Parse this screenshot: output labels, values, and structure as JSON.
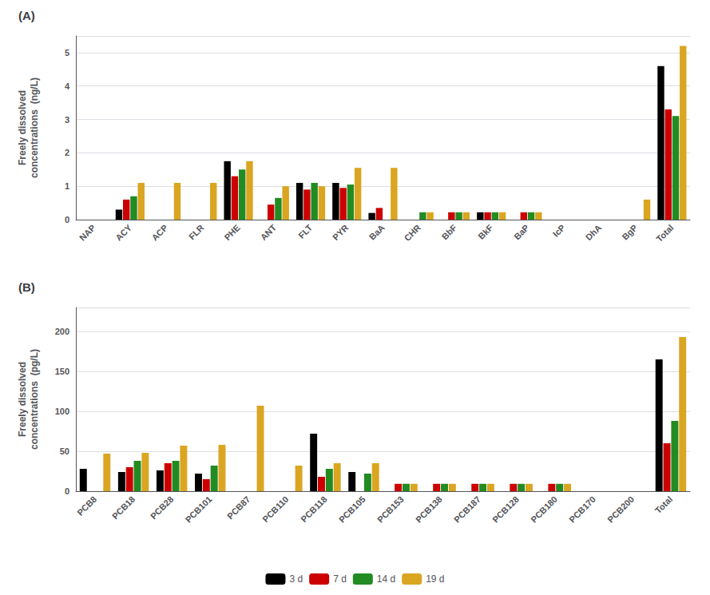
{
  "chart_data": [
    {
      "type": "bar",
      "title": "(A)",
      "categories": [
        "NAP",
        "ACY",
        "ACP",
        "FLR",
        "PHE",
        "ANT",
        "FLT",
        "PYR",
        "BaA",
        "CHR",
        "BbF",
        "BkF",
        "BaP",
        "IcP",
        "DhA",
        "BgP",
        "Total"
      ],
      "series": [
        {
          "name": "3 d",
          "color": "#000000",
          "values": [
            0.0,
            0.3,
            0.0,
            0.0,
            1.75,
            0.0,
            1.1,
            1.1,
            0.2,
            0.0,
            0.0,
            0.22,
            0.0,
            0.0,
            0.0,
            0.0,
            4.6
          ]
        },
        {
          "name": "7 d",
          "color": "#cc0000",
          "values": [
            0.0,
            0.6,
            0.0,
            0.0,
            1.3,
            0.45,
            0.9,
            0.95,
            0.35,
            0.0,
            0.22,
            0.22,
            0.22,
            0.0,
            0.0,
            0.0,
            3.3
          ]
        },
        {
          "name": "14 d",
          "color": "#228B22",
          "values": [
            0.0,
            0.7,
            0.0,
            0.0,
            1.5,
            0.65,
            1.1,
            1.05,
            0.0,
            0.22,
            0.22,
            0.22,
            0.22,
            0.0,
            0.0,
            0.0,
            3.1
          ]
        },
        {
          "name": "19 d",
          "color": "#DAA520",
          "values": [
            0.0,
            1.1,
            1.1,
            1.1,
            1.75,
            1.0,
            1.0,
            1.55,
            1.55,
            0.22,
            0.22,
            0.22,
            0.22,
            0.0,
            0.0,
            0.6,
            5.2
          ]
        }
      ],
      "ylabel": "Freely dissolved\nconcentrations  (ng/L)",
      "ylim": [
        0,
        5.5
      ],
      "yticks": [
        0,
        1,
        2,
        3,
        4,
        5
      ],
      "grid": true,
      "legend": "bottom"
    },
    {
      "type": "bar",
      "title": "(B)",
      "categories": [
        "PCB8",
        "PCB18",
        "PCB28",
        "PCB101",
        "PCB87",
        "PCB110",
        "PCB118",
        "PCB105",
        "PCB153",
        "PCB138",
        "PCB187",
        "PCB128",
        "PCB180",
        "PCB170",
        "PCB200",
        "Total"
      ],
      "series": [
        {
          "name": "3 d",
          "color": "#000000",
          "values": [
            28,
            24,
            26,
            22,
            0,
            0,
            72,
            24,
            0,
            0,
            0,
            0,
            0,
            0,
            0,
            165
          ]
        },
        {
          "name": "7 d",
          "color": "#cc0000",
          "values": [
            0,
            30,
            35,
            15,
            0,
            0,
            18,
            0,
            9.2,
            9.2,
            9.2,
            9.2,
            9.2,
            0,
            0,
            60
          ]
        },
        {
          "name": "14 d",
          "color": "#228B22",
          "values": [
            0,
            38,
            38,
            32,
            0,
            0,
            28,
            22,
            9.2,
            9.2,
            9.2,
            9.2,
            9.2,
            0,
            0,
            88
          ]
        },
        {
          "name": "19 d",
          "color": "#DAA520",
          "values": [
            47,
            48,
            57,
            58,
            107,
            32,
            35,
            35,
            9.2,
            9.2,
            9.2,
            9.2,
            9.2,
            0,
            0,
            193
          ]
        }
      ],
      "ylabel": "Freely dissolved\nconcentrations  (pg/L)",
      "ylim": [
        0,
        230
      ],
      "yticks": [
        0,
        50,
        100,
        150,
        200
      ],
      "grid": true,
      "legend": "bottom"
    }
  ]
}
